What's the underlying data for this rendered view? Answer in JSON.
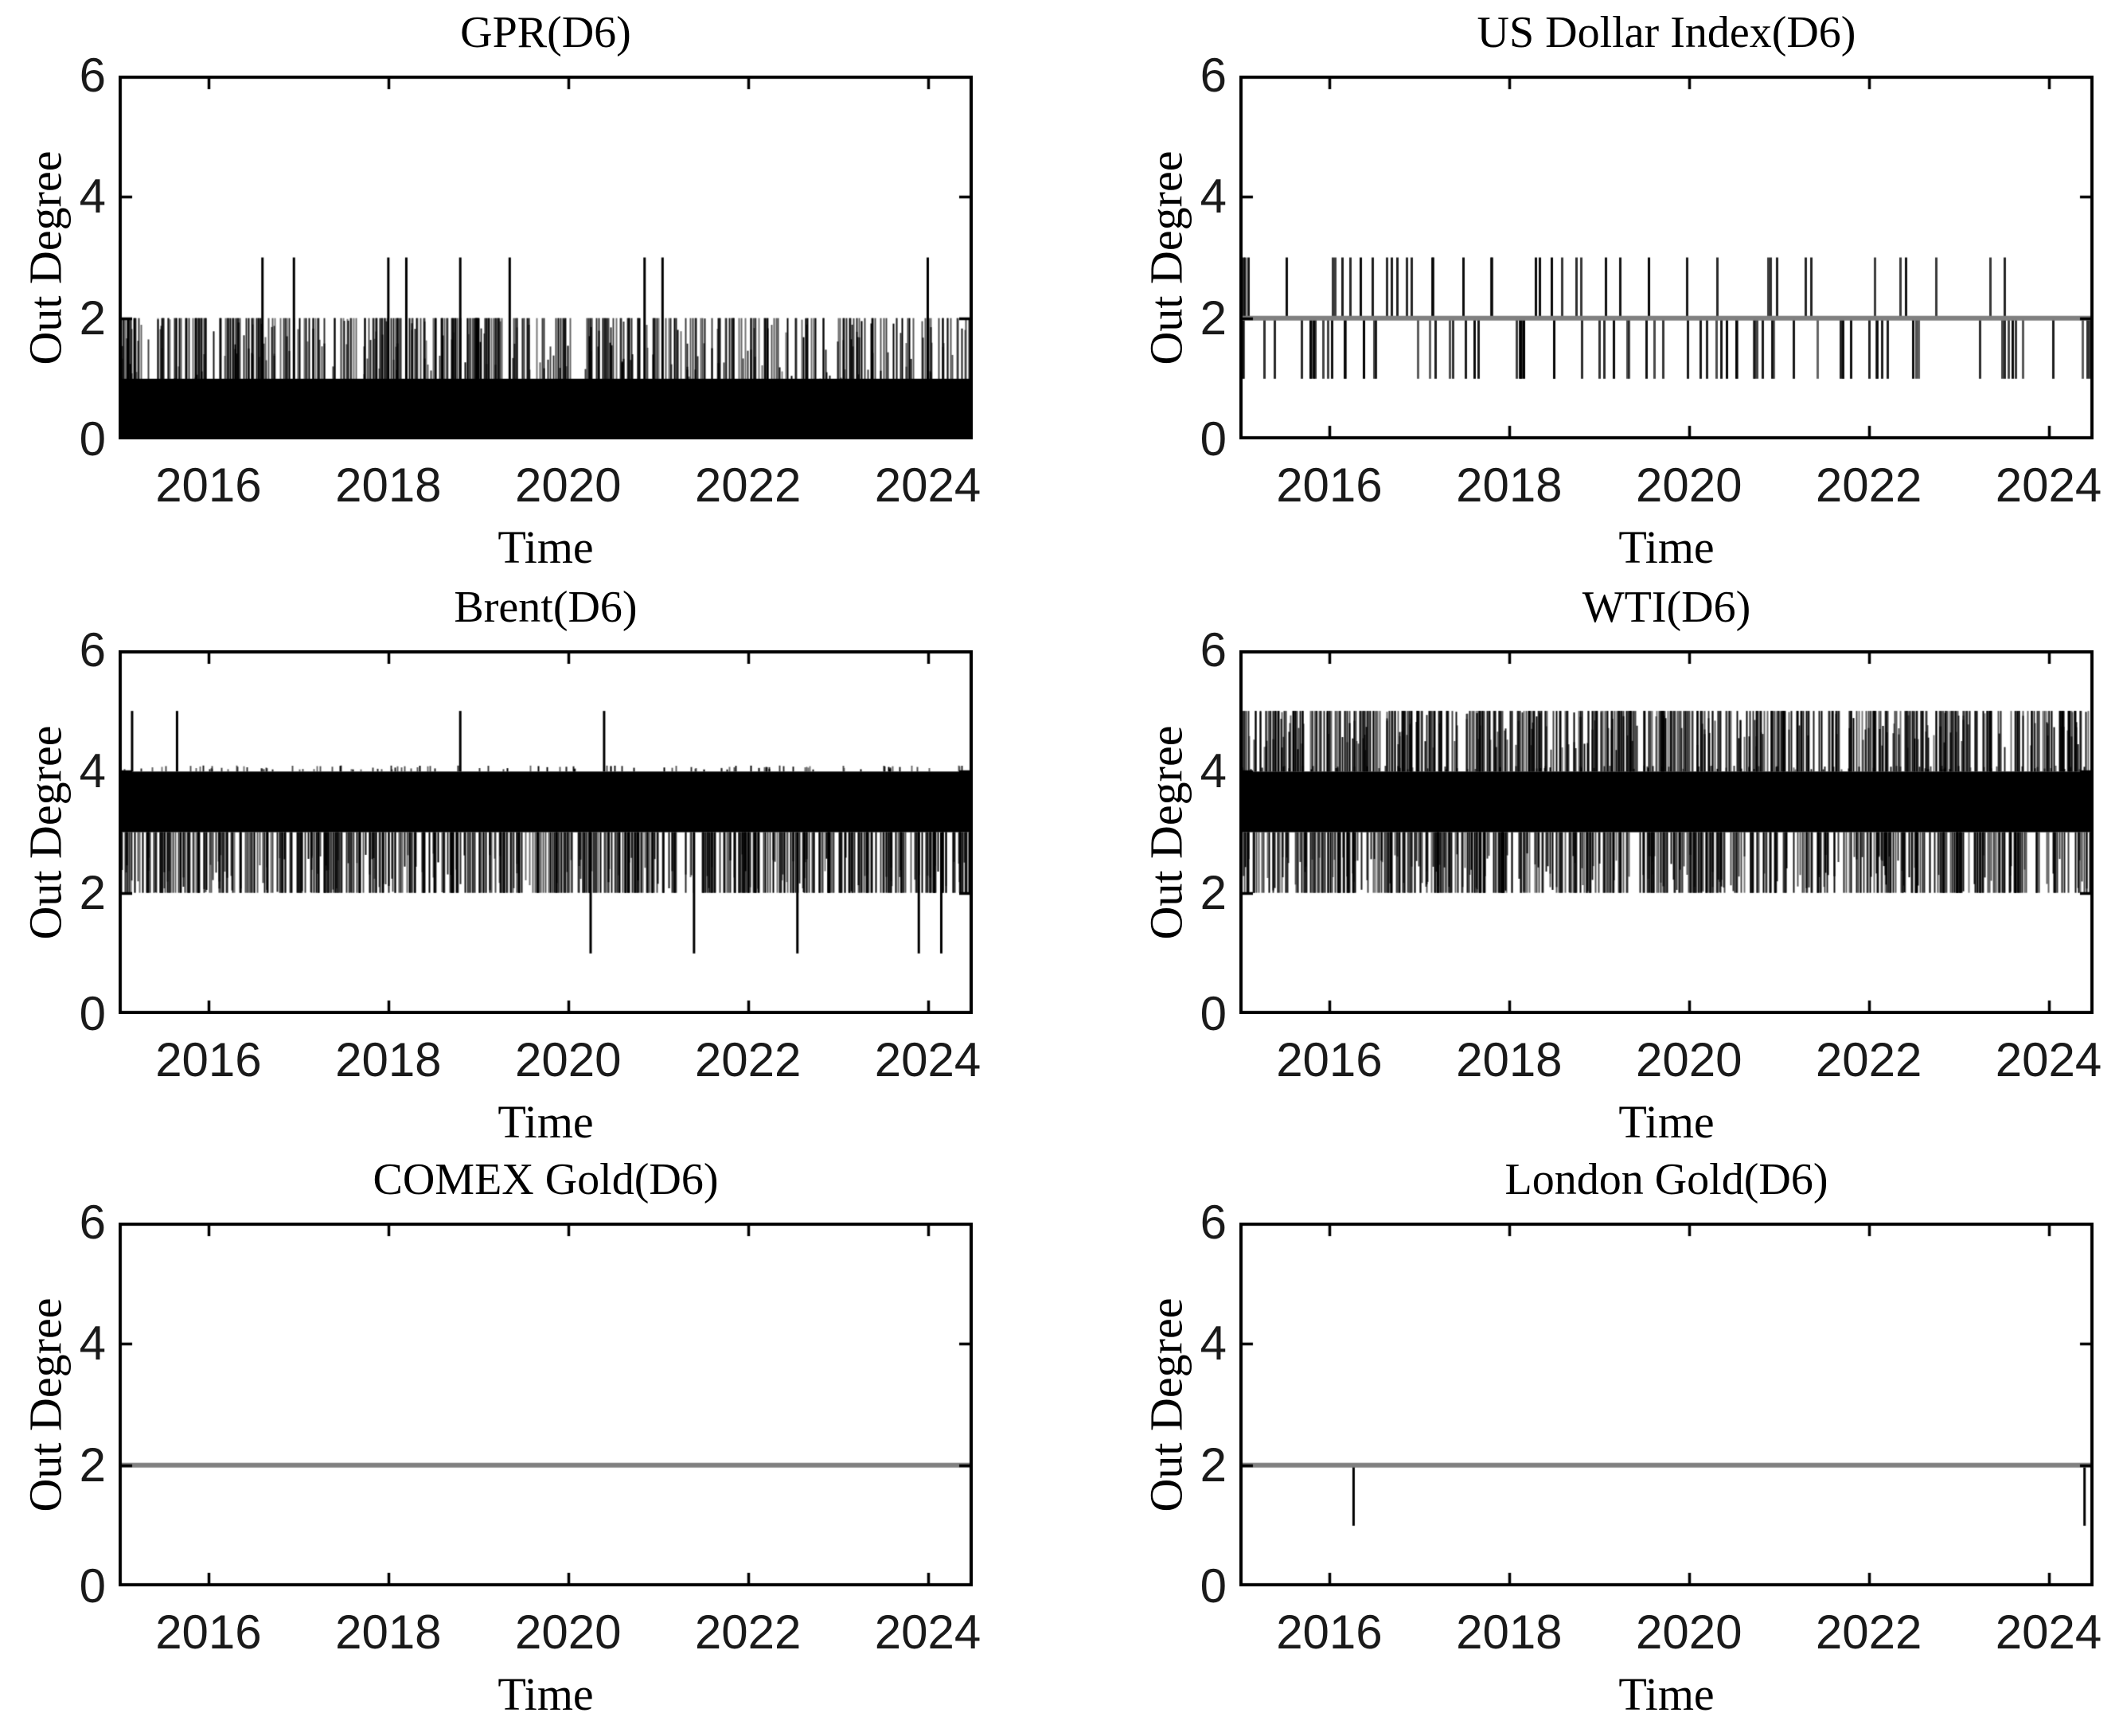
{
  "figure": {
    "background": "#ffffff",
    "text_color": "#000000",
    "tick_color": "#1a1a1a"
  },
  "chart_data": [
    {
      "type": "line",
      "title": "GPR(D6)",
      "xlabel": "Time",
      "ylabel": "Out Degree",
      "xlim": [
        2015,
        2024.5
      ],
      "ylim": [
        0,
        6
      ],
      "x_ticks": [
        2016,
        2018,
        2020,
        2022,
        2024
      ],
      "y_ticks": [
        0,
        2,
        4,
        6
      ],
      "grid": false,
      "legend": null,
      "line_color": "#000000",
      "pattern": {
        "seed": 11,
        "bands": [
          [
            0,
            1
          ]
        ],
        "dense": [
          {
            "tip": 2,
            "base": 0,
            "count": 300
          },
          {
            "tip": 2,
            "base": 0,
            "count": 260,
            "vary": true
          }
        ],
        "events": [
          {
            "tip": 3,
            "base": 0,
            "x": [
              2016.6,
              2016.95,
              2018.0,
              2018.2,
              2018.8,
              2019.35,
              2020.85,
              2021.05,
              2024.0
            ]
          }
        ]
      }
    },
    {
      "type": "line",
      "title": "US Dollar Index(D6)",
      "xlabel": "Time",
      "ylabel": "Out Degree",
      "xlim": [
        2015,
        2024.5
      ],
      "ylim": [
        0,
        6
      ],
      "x_ticks": [
        2016,
        2018,
        2020,
        2022,
        2024
      ],
      "y_ticks": [
        0,
        2,
        4,
        6
      ],
      "grid": false,
      "legend": null,
      "line_color": "#000000",
      "pattern": {
        "seed": 22,
        "dense": [
          {
            "tip": 3,
            "base": 2,
            "count": 42,
            "lw": 3,
            "alpha_min": 0.75
          },
          {
            "tip": 1,
            "base": 2,
            "count": 80,
            "lw": 3,
            "alpha_min": 0.6
          }
        ],
        "baseline": {
          "y": 2,
          "color": "#808080",
          "width": 6
        }
      }
    },
    {
      "type": "line",
      "title": "Brent(D6)",
      "xlabel": "Time",
      "ylabel": "Out Degree",
      "xlim": [
        2015,
        2024.5
      ],
      "ylim": [
        0,
        6
      ],
      "x_ticks": [
        2016,
        2018,
        2020,
        2022,
        2024
      ],
      "y_ticks": [
        0,
        2,
        4,
        6
      ],
      "grid": false,
      "legend": null,
      "line_color": "#000000",
      "pattern": {
        "seed": 33,
        "bands": [
          [
            3,
            4
          ]
        ],
        "dense": [
          {
            "tip": 2,
            "base": 3,
            "count": 480
          },
          {
            "tip": 2,
            "base": 3,
            "count": 160,
            "vary": true
          },
          {
            "tip": 4.1,
            "base": 4,
            "count": 120,
            "vary": true
          }
        ],
        "events": [
          {
            "tip": 5,
            "base": 4,
            "x": [
              2015.15,
              2015.65,
              2018.8,
              2020.4
            ]
          },
          {
            "tip": 1,
            "base": 3,
            "x": [
              2020.25,
              2021.4,
              2022.55,
              2023.9,
              2024.15
            ]
          }
        ]
      }
    },
    {
      "type": "line",
      "title": "WTI(D6)",
      "xlabel": "Time",
      "ylabel": "Out Degree",
      "xlim": [
        2015,
        2024.5
      ],
      "ylim": [
        0,
        6
      ],
      "x_ticks": [
        2016,
        2018,
        2020,
        2022,
        2024
      ],
      "y_ticks": [
        0,
        2,
        4,
        6
      ],
      "grid": false,
      "legend": null,
      "line_color": "#000000",
      "pattern": {
        "seed": 44,
        "bands": [
          [
            3,
            4
          ]
        ],
        "dense": [
          {
            "tip": 5,
            "base": 4,
            "count": 430
          },
          {
            "tip": 5,
            "base": 4,
            "count": 170,
            "vary": true
          },
          {
            "tip": 2,
            "base": 3,
            "count": 430
          },
          {
            "tip": 2,
            "base": 3,
            "count": 170,
            "vary": true
          },
          {
            "tip": 4.1,
            "base": 4,
            "count": 100,
            "vary": true
          }
        ]
      }
    },
    {
      "type": "line",
      "title": "COMEX Gold(D6)",
      "xlabel": "Time",
      "ylabel": "Out Degree",
      "xlim": [
        2015,
        2024.5
      ],
      "ylim": [
        0,
        6
      ],
      "x_ticks": [
        2016,
        2018,
        2020,
        2022,
        2024
      ],
      "y_ticks": [
        0,
        2,
        4,
        6
      ],
      "grid": false,
      "legend": null,
      "line_color": "#000000",
      "pattern": {
        "seed": 55,
        "baseline": {
          "y": 2,
          "color": "#808080",
          "width": 6
        }
      }
    },
    {
      "type": "line",
      "title": "London Gold(D6)",
      "xlabel": "Time",
      "ylabel": "Out Degree",
      "xlim": [
        2015,
        2024.5
      ],
      "ylim": [
        0,
        6
      ],
      "x_ticks": [
        2016,
        2018,
        2020,
        2022,
        2024
      ],
      "y_ticks": [
        0,
        2,
        4,
        6
      ],
      "grid": false,
      "legend": null,
      "line_color": "#000000",
      "pattern": {
        "seed": 66,
        "events": [
          {
            "tip": 1,
            "base": 2,
            "x": [
              2016.27,
              2024.4
            ]
          }
        ],
        "baseline": {
          "y": 2,
          "color": "#808080",
          "width": 6
        }
      }
    }
  ]
}
